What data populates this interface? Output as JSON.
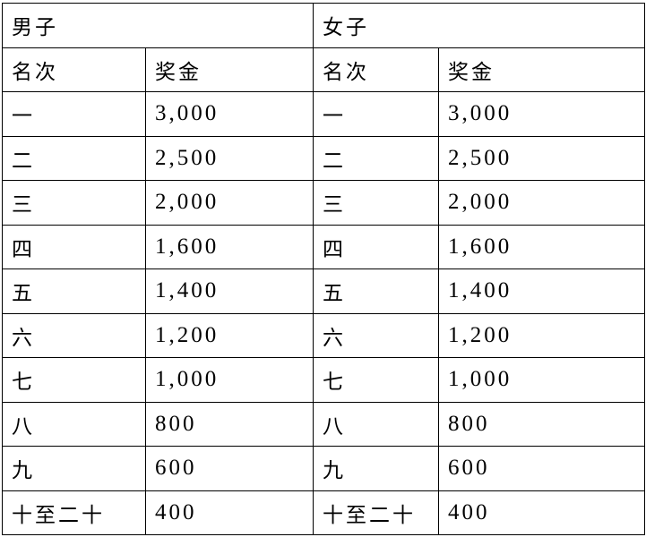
{
  "groups": [
    {
      "label": "男子"
    },
    {
      "label": "女子"
    }
  ],
  "headers": {
    "rank": "名次",
    "prize": "奖金"
  },
  "rows": [
    {
      "rank": "一",
      "prize": "3,000"
    },
    {
      "rank": "二",
      "prize": "2,500"
    },
    {
      "rank": "三",
      "prize": "2,000"
    },
    {
      "rank": "四",
      "prize": "1,600"
    },
    {
      "rank": "五",
      "prize": "1,400"
    },
    {
      "rank": "六",
      "prize": "1,200"
    },
    {
      "rank": "七",
      "prize": "1,000"
    },
    {
      "rank": "八",
      "prize": "800"
    },
    {
      "rank": "九",
      "prize": "600"
    },
    {
      "rank": "十至二十",
      "prize": "400"
    }
  ]
}
